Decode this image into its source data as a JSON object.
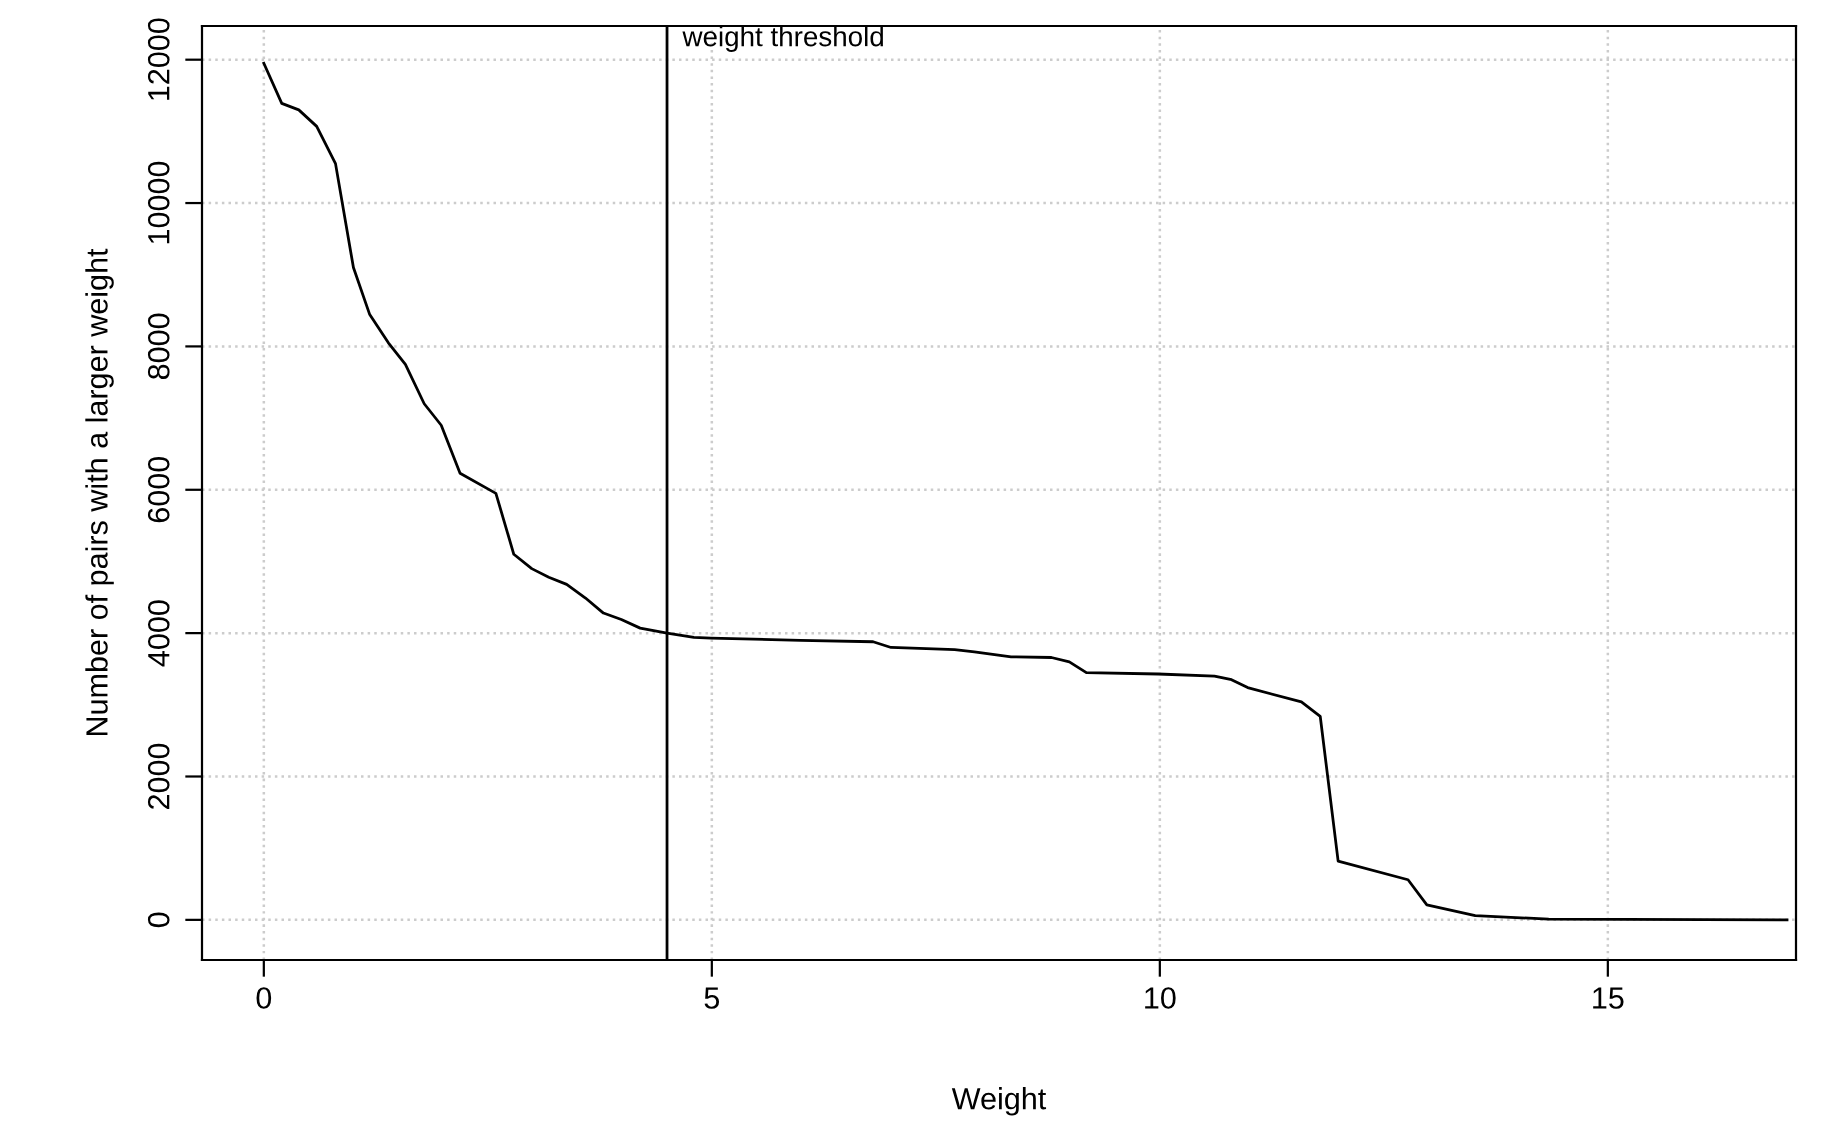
{
  "chart_data": {
    "type": "line",
    "xlabel": "Weight",
    "ylabel": "Number of pairs with a larger weight",
    "x": [
      0,
      0.2,
      0.39,
      0.59,
      0.8,
      1.0,
      1.18,
      1.39,
      1.58,
      1.79,
      1.98,
      2.19,
      2.59,
      2.79,
      2.99,
      3.18,
      3.38,
      3.59,
      3.79,
      3.99,
      4.2,
      4.5,
      4.8,
      4.99,
      5.99,
      6.8,
      7.0,
      7.71,
      7.93,
      8.34,
      8.79,
      8.99,
      9.18,
      9.98,
      10.61,
      10.8,
      10.98,
      11.58,
      11.79,
      11.99,
      12.77,
      12.98,
      13.52,
      14.34,
      17.0
    ],
    "series": [
      {
        "color": "#000000",
        "values": [
          11950,
          11390,
          11300,
          11070,
          10550,
          9100,
          8450,
          8050,
          7750,
          7200,
          6900,
          6230,
          5950,
          5100,
          4900,
          4780,
          4680,
          4490,
          4280,
          4190,
          4070,
          4000,
          3940,
          3930,
          3900,
          3880,
          3800,
          3770,
          3740,
          3670,
          3660,
          3600,
          3450,
          3430,
          3400,
          3350,
          3240,
          3040,
          2840,
          820,
          560,
          210,
          60,
          10,
          0
        ]
      }
    ],
    "xlim": [
      -0.69,
      17.1
    ],
    "ylim": [
      -560,
      12470
    ],
    "xticks": [
      0,
      5,
      10,
      15
    ],
    "yticks": [
      0,
      2000,
      4000,
      6000,
      8000,
      10000,
      12000
    ],
    "grid": true,
    "line_style": "solid",
    "marker": "none",
    "ref_lines": [
      {
        "axis": "x",
        "value": 4.5,
        "label": "weight threshold",
        "color": "#000000"
      }
    ]
  }
}
